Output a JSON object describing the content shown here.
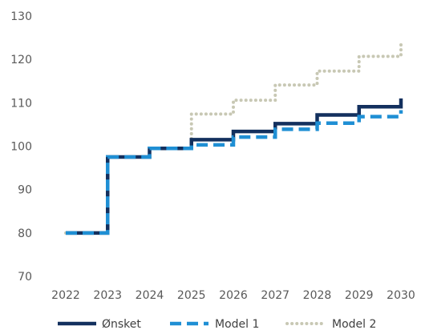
{
  "chart_data": {
    "type": "line",
    "step": true,
    "x_categories": [
      "2022",
      "2023",
      "2024",
      "2025",
      "2026",
      "2027",
      "2028",
      "2029",
      "2030"
    ],
    "x": [
      2022,
      2023,
      2024,
      2025,
      2026,
      2027,
      2028,
      2029,
      2030
    ],
    "ylim": [
      70,
      130
    ],
    "yticks": [
      70,
      80,
      90,
      100,
      110,
      120,
      130
    ],
    "grid": false,
    "legend_position": "bottom",
    "series": [
      {
        "name": "Ønsket",
        "color": "#13305e",
        "style": "solid",
        "values": [
          80,
          97.5,
          99.5,
          101.5,
          103.4,
          105.2,
          107.2,
          109.1,
          111
        ]
      },
      {
        "name": "Model 1",
        "color": "#1f8fd4",
        "style": "dashed",
        "values": [
          80,
          97.5,
          99.5,
          100.3,
          102.1,
          103.9,
          105.3,
          106.8,
          108.3
        ]
      },
      {
        "name": "Model 2",
        "color": "#c8c8b4",
        "style": "dotted",
        "values": [
          80,
          97.5,
          99.5,
          107.4,
          110.6,
          114.1,
          117.3,
          120.7,
          124
        ]
      }
    ]
  }
}
